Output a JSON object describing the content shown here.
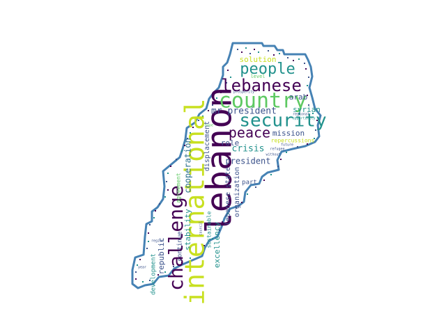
{
  "colors": {
    "outline": "#4682b4",
    "dark_purple": "#440154",
    "indigo": "#3b528b",
    "teal": "#21918c",
    "green": "#5ec962",
    "yellow": "#d8e219",
    "background": "#ffffff"
  },
  "words": [
    {
      "text": "lebanon",
      "color": "#440154"
    },
    {
      "text": "international",
      "color": "#c8e020"
    },
    {
      "text": "country",
      "color": "#5ec962"
    },
    {
      "text": "security",
      "color": "#21918c"
    },
    {
      "text": "challenge",
      "color": "#440154"
    },
    {
      "text": "lebanese",
      "color": "#440154"
    },
    {
      "text": "people",
      "color": "#21918c"
    },
    {
      "text": "peace",
      "color": "#440154"
    },
    {
      "text": "mr president",
      "color": "#3b528b"
    },
    {
      "text": "cooperation",
      "color": "#2c728e"
    },
    {
      "text": "crisis",
      "color": "#21918c"
    },
    {
      "text": "president",
      "color": "#3b528b"
    },
    {
      "text": "displacement",
      "color": "#3b528b"
    },
    {
      "text": "solution",
      "color": "#c8e020"
    },
    {
      "text": "arab",
      "color": "#3b528b"
    },
    {
      "text": "mission",
      "color": "#3b528b"
    },
    {
      "text": "syrian",
      "color": "#21918c"
    },
    {
      "text": "role",
      "color": "#3b528b"
    },
    {
      "text": "republic",
      "color": "#3b528b"
    },
    {
      "text": "continue",
      "color": "#3b528b"
    },
    {
      "text": "stability",
      "color": "#21918c"
    },
    {
      "text": "excellency",
      "color": "#21918c"
    },
    {
      "text": "lebanese state",
      "color": "#3b528b"
    },
    {
      "text": "organization",
      "color": "#3b528b"
    },
    {
      "text": "part",
      "color": "#3b528b"
    },
    {
      "text": "development",
      "color": "#21918c"
    },
    {
      "text": "sustainable",
      "color": "#21918c"
    },
    {
      "text": "agreement",
      "color": "#5ec962"
    },
    {
      "text": "repercussions",
      "color": "#c8e020"
    },
    {
      "text": "level",
      "color": "#5ec962"
    },
    {
      "text": "regional",
      "color": "#3b528b"
    },
    {
      "text": "future",
      "color": "#3b528b"
    },
    {
      "text": "refugee",
      "color": "#3b528b"
    },
    {
      "text": "council",
      "color": "#3b528b"
    },
    {
      "text": "prosperity",
      "color": "#3b528b"
    },
    {
      "text": "opportunity",
      "color": "#21918c"
    },
    {
      "text": "year",
      "color": "#3b528b"
    },
    {
      "text": "region",
      "color": "#3b528b"
    },
    {
      "text": "without",
      "color": "#3b528b"
    },
    {
      "text": "hope",
      "color": "#5ec962"
    }
  ]
}
